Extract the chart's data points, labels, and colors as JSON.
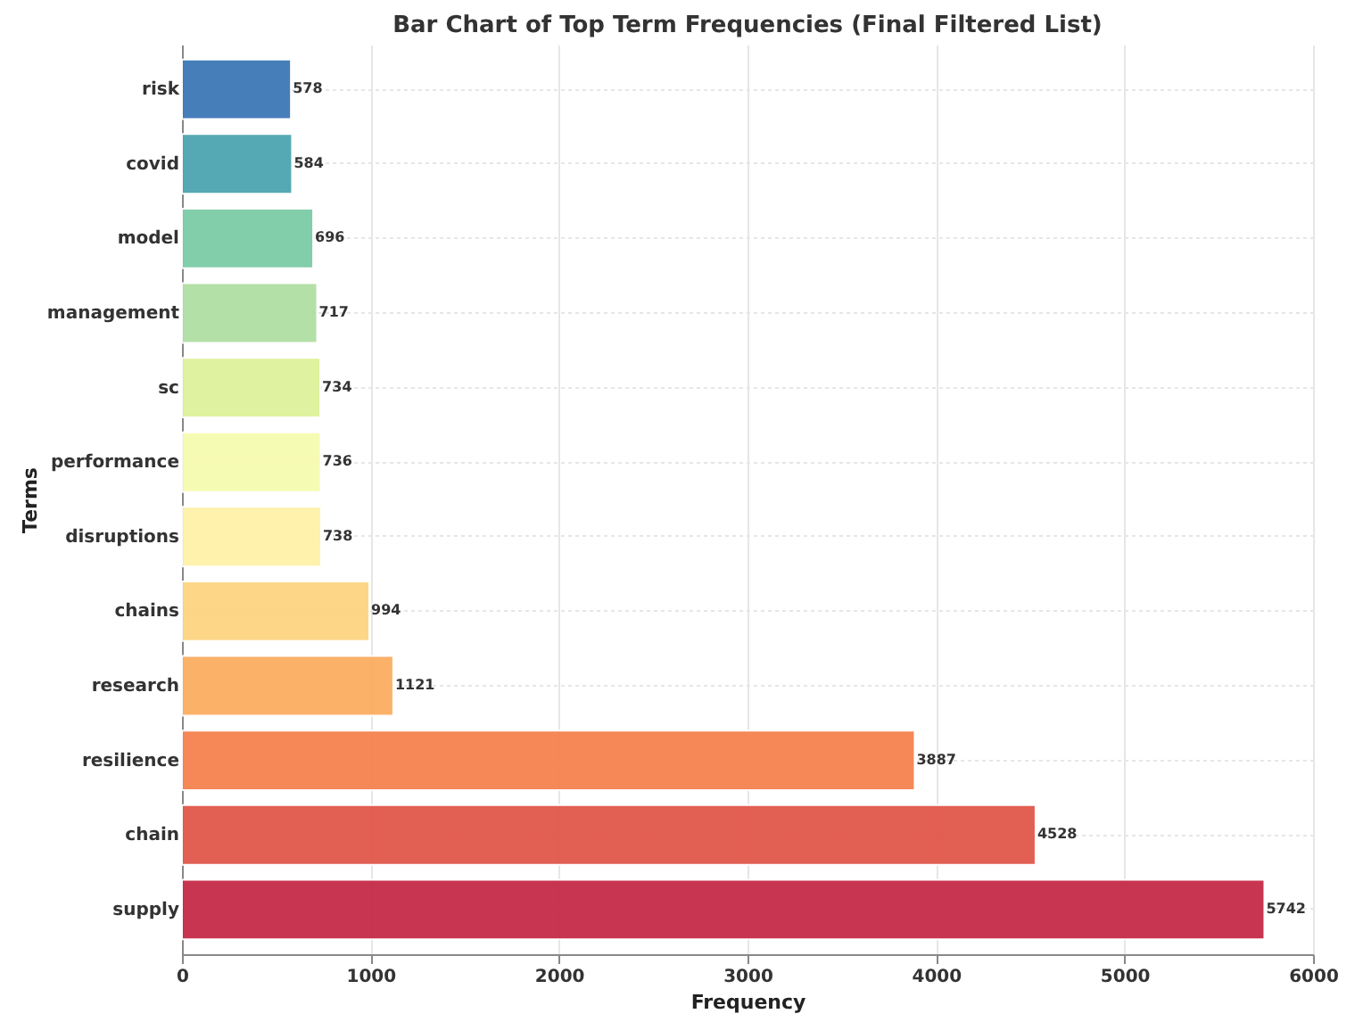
{
  "chart_data": {
    "type": "bar",
    "orientation": "horizontal",
    "title": "Bar Chart of Top Term Frequencies (Final Filtered List)",
    "xlabel": "Frequency",
    "ylabel": "Terms",
    "categories": [
      "risk",
      "covid",
      "model",
      "management",
      "sc",
      "performance",
      "disruptions",
      "chains",
      "research",
      "resilience",
      "chain",
      "supply"
    ],
    "values": [
      578,
      584,
      696,
      717,
      734,
      736,
      738,
      994,
      1121,
      3887,
      4528,
      5742
    ],
    "colors": [
      "#3d78b7",
      "#4ca5b0",
      "#7ccba6",
      "#afdfa2",
      "#def29a",
      "#f6fbb0",
      "#fef2a9",
      "#fdd581",
      "#fcad62",
      "#f5824d",
      "#e1574a",
      "#c62b48"
    ],
    "xlim": [
      0,
      6000
    ],
    "xticks": [
      0,
      1000,
      2000,
      3000,
      4000,
      5000,
      6000
    ],
    "grid": true,
    "data_labels": true
  }
}
